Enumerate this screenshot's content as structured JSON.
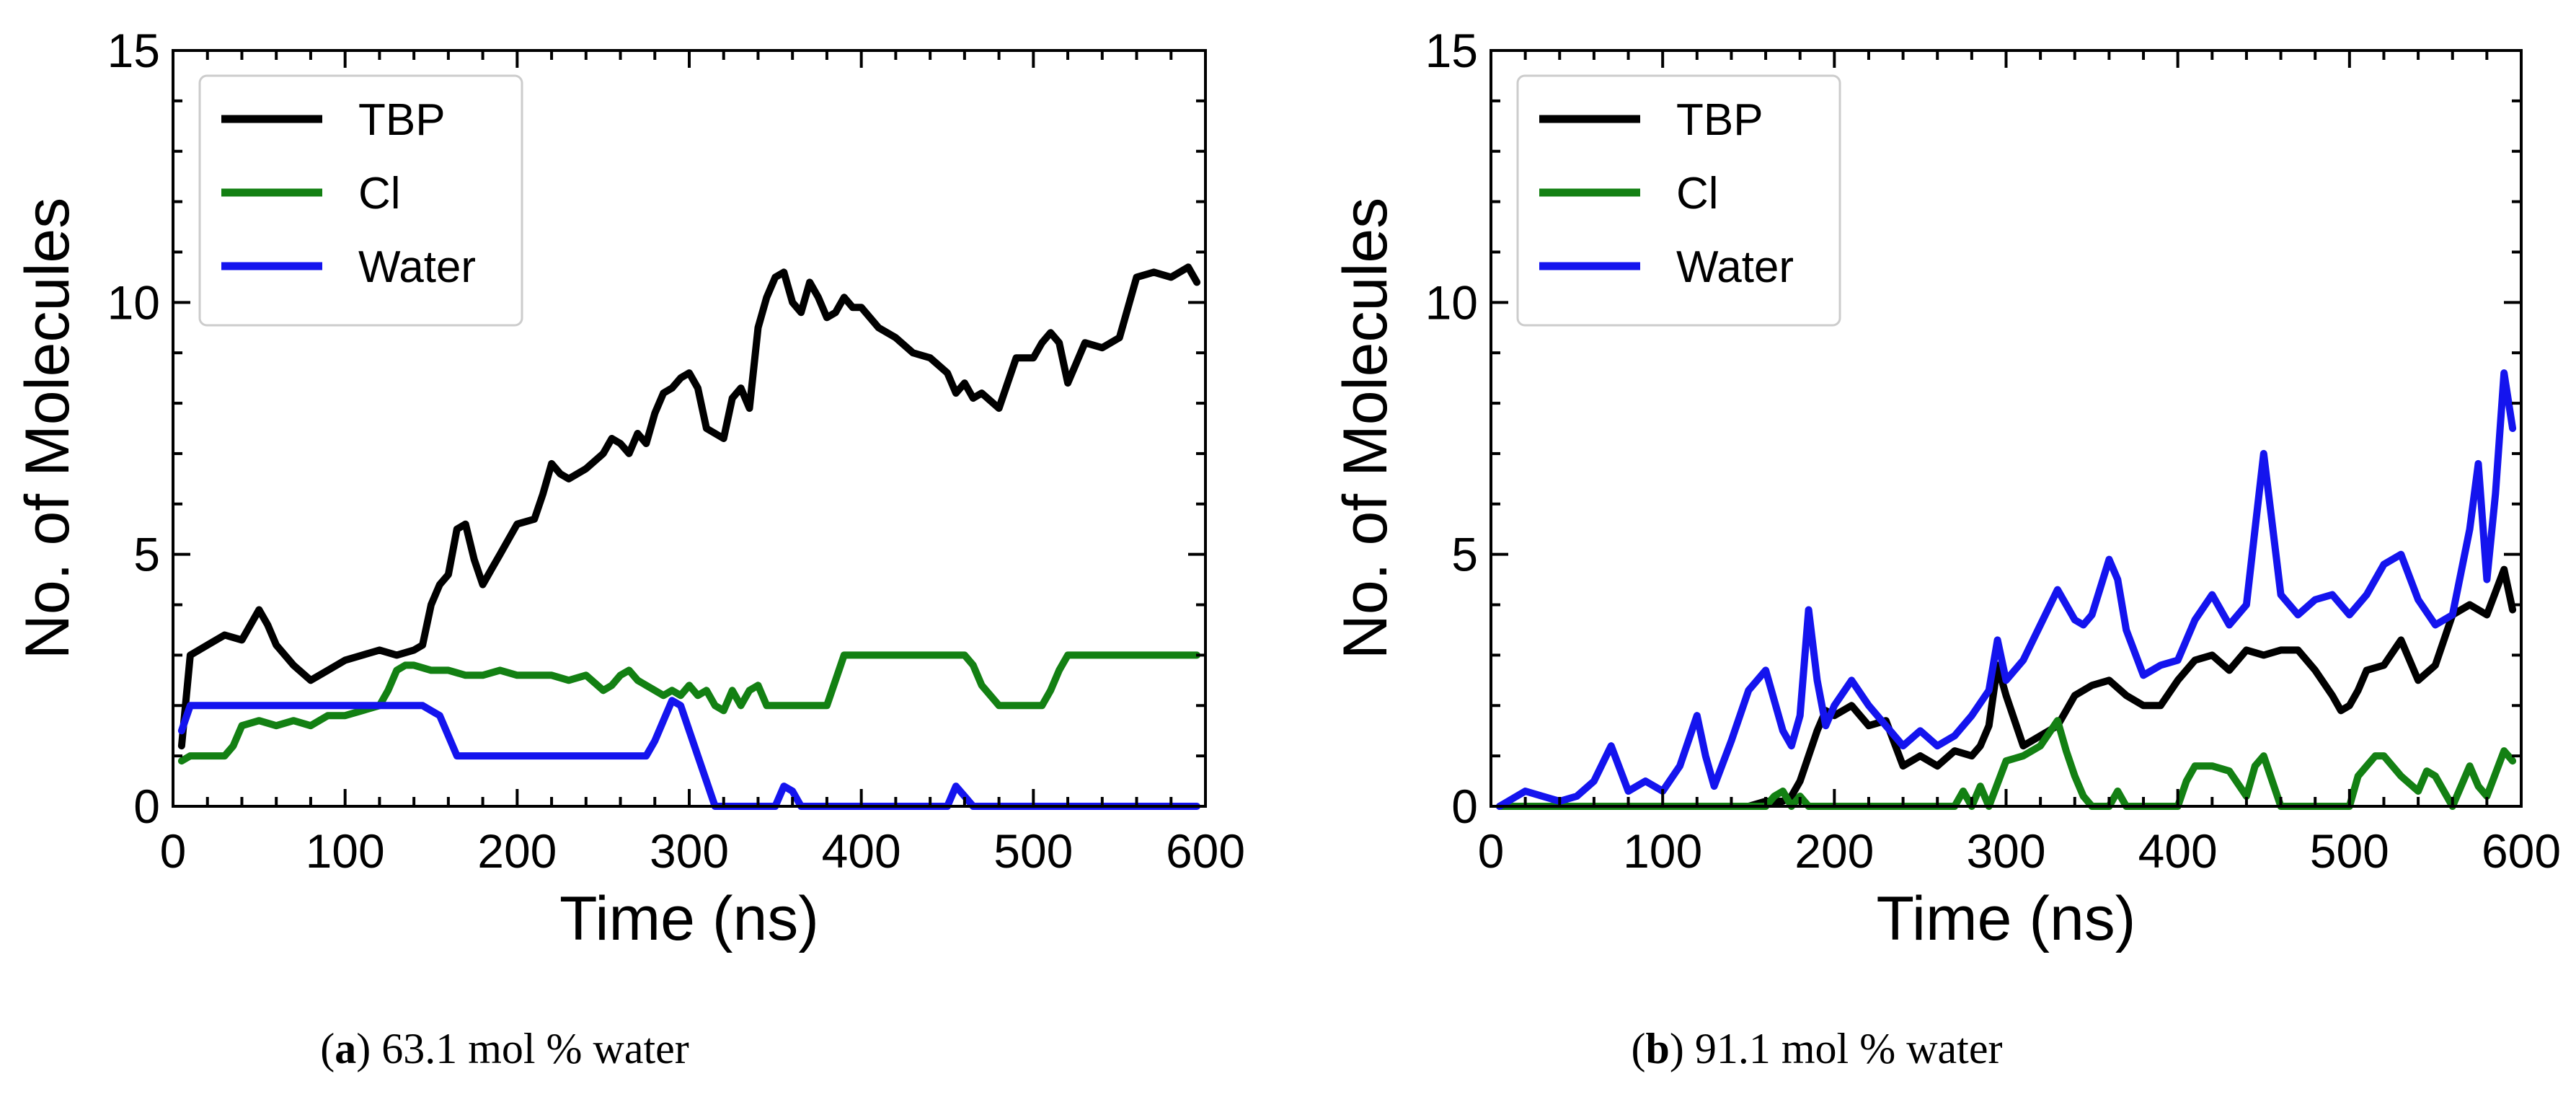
{
  "captions": [
    {
      "paren_open": "(",
      "label": "a",
      "paren_close": ")",
      "text": "63.1 mol % water"
    },
    {
      "paren_open": "(",
      "label": "b",
      "paren_close": ")",
      "text": "91.1 mol % water"
    }
  ],
  "colors": {
    "TBP": "#000000",
    "Cl": "#138013",
    "Water": "#1414ee"
  },
  "chart_data": [
    {
      "type": "line",
      "title": "",
      "xlabel": "Time (ns)",
      "ylabel": "No. of Molecules",
      "xlim": [
        0,
        600
      ],
      "ylim": [
        0,
        15
      ],
      "xticks": [
        0,
        100,
        200,
        300,
        400,
        500,
        600
      ],
      "yticks": [
        0,
        5,
        10,
        15
      ],
      "legend": "top-left",
      "series": [
        {
          "name": "TBP",
          "color": "#000000",
          "x": [
            5,
            10,
            20,
            30,
            40,
            50,
            55,
            60,
            70,
            80,
            90,
            100,
            110,
            120,
            130,
            140,
            145,
            150,
            155,
            160,
            165,
            170,
            175,
            180,
            185,
            190,
            200,
            210,
            215,
            220,
            225,
            230,
            240,
            250,
            255,
            260,
            265,
            270,
            275,
            280,
            285,
            290,
            295,
            300,
            305,
            310,
            315,
            320,
            325,
            330,
            335,
            340,
            345,
            350,
            355,
            360,
            365,
            370,
            375,
            380,
            385,
            390,
            395,
            400,
            410,
            420,
            430,
            440,
            450,
            455,
            460,
            465,
            470,
            480,
            490,
            500,
            505,
            510,
            515,
            520,
            525,
            530,
            540,
            550,
            560,
            570,
            580,
            590,
            595
          ],
          "y": [
            1.2,
            3.0,
            3.2,
            3.4,
            3.3,
            3.9,
            3.6,
            3.2,
            2.8,
            2.5,
            2.7,
            2.9,
            3.0,
            3.1,
            3.0,
            3.1,
            3.2,
            4.0,
            4.4,
            4.6,
            5.5,
            5.6,
            4.9,
            4.4,
            4.7,
            5.0,
            5.6,
            5.7,
            6.2,
            6.8,
            6.6,
            6.5,
            6.7,
            7.0,
            7.3,
            7.2,
            7.0,
            7.4,
            7.2,
            7.8,
            8.2,
            8.3,
            8.5,
            8.6,
            8.3,
            7.5,
            7.4,
            7.3,
            8.1,
            8.3,
            7.9,
            9.5,
            10.1,
            10.5,
            10.6,
            10.0,
            9.8,
            10.4,
            10.1,
            9.7,
            9.8,
            10.1,
            9.9,
            9.9,
            9.5,
            9.3,
            9.0,
            8.9,
            8.6,
            8.2,
            8.4,
            8.1,
            8.2,
            7.9,
            8.9,
            8.9,
            9.2,
            9.4,
            9.2,
            8.4,
            8.8,
            9.2,
            9.1,
            9.3,
            10.5,
            10.6,
            10.5,
            10.7,
            10.4
          ]
        },
        {
          "name": "Cl",
          "color": "#138013",
          "x": [
            5,
            10,
            20,
            30,
            35,
            40,
            50,
            60,
            70,
            80,
            90,
            100,
            110,
            120,
            125,
            130,
            135,
            140,
            150,
            160,
            170,
            180,
            190,
            200,
            210,
            220,
            230,
            240,
            250,
            255,
            260,
            265,
            270,
            275,
            280,
            285,
            290,
            295,
            300,
            305,
            310,
            315,
            320,
            325,
            330,
            335,
            340,
            345,
            350,
            360,
            370,
            380,
            385,
            390,
            395,
            400,
            410,
            420,
            430,
            440,
            450,
            460,
            465,
            470,
            480,
            490,
            500,
            505,
            510,
            515,
            520,
            530,
            540,
            550,
            560,
            570,
            580,
            590,
            595
          ],
          "y": [
            0.9,
            1.0,
            1.0,
            1.0,
            1.2,
            1.6,
            1.7,
            1.6,
            1.7,
            1.6,
            1.8,
            1.8,
            1.9,
            2.0,
            2.3,
            2.7,
            2.8,
            2.8,
            2.7,
            2.7,
            2.6,
            2.6,
            2.7,
            2.6,
            2.6,
            2.6,
            2.5,
            2.6,
            2.3,
            2.4,
            2.6,
            2.7,
            2.5,
            2.4,
            2.3,
            2.2,
            2.3,
            2.2,
            2.4,
            2.2,
            2.3,
            2.0,
            1.9,
            2.3,
            2.0,
            2.3,
            2.4,
            2.0,
            2.0,
            2.0,
            2.0,
            2.0,
            2.5,
            3.0,
            3.0,
            3.0,
            3.0,
            3.0,
            3.0,
            3.0,
            3.0,
            3.0,
            2.8,
            2.4,
            2.0,
            2.0,
            2.0,
            2.0,
            2.3,
            2.7,
            3.0,
            3.0,
            3.0,
            3.0,
            3.0,
            3.0,
            3.0,
            3.0,
            3.0
          ]
        },
        {
          "name": "Water",
          "color": "#1414ee",
          "x": [
            5,
            10,
            20,
            40,
            60,
            80,
            100,
            120,
            140,
            145,
            150,
            155,
            160,
            165,
            170,
            200,
            230,
            260,
            275,
            280,
            285,
            290,
            295,
            300,
            305,
            310,
            315,
            320,
            325,
            330,
            340,
            350,
            355,
            360,
            365,
            370,
            380,
            450,
            455,
            460,
            465,
            470,
            480,
            500,
            520,
            540,
            560,
            580,
            595
          ],
          "y": [
            1.5,
            2.0,
            2.0,
            2.0,
            2.0,
            2.0,
            2.0,
            2.0,
            2.0,
            2.0,
            1.9,
            1.8,
            1.4,
            1.0,
            1.0,
            1.0,
            1.0,
            1.0,
            1.0,
            1.3,
            1.7,
            2.1,
            2.0,
            1.5,
            1.0,
            0.5,
            0.0,
            0.0,
            0.0,
            0.0,
            0.0,
            0.0,
            0.4,
            0.3,
            0.0,
            0.0,
            0.0,
            0.0,
            0.4,
            0.2,
            0.0,
            0.0,
            0.0,
            0.0,
            0.0,
            0.0,
            0.0,
            0.0,
            0.0
          ]
        }
      ]
    },
    {
      "type": "line",
      "title": "",
      "xlabel": "Time (ns)",
      "ylabel": "No. of Molecules",
      "xlim": [
        0,
        600
      ],
      "ylim": [
        0,
        15
      ],
      "xticks": [
        0,
        100,
        200,
        300,
        400,
        500,
        600
      ],
      "yticks": [
        0,
        5,
        10,
        15
      ],
      "legend": "top-left",
      "series": [
        {
          "name": "TBP",
          "color": "#000000",
          "x": [
            5,
            50,
            100,
            150,
            160,
            170,
            175,
            180,
            185,
            190,
            195,
            200,
            210,
            220,
            230,
            240,
            250,
            260,
            270,
            280,
            285,
            290,
            295,
            300,
            305,
            310,
            320,
            330,
            340,
            350,
            360,
            370,
            380,
            390,
            400,
            410,
            420,
            430,
            440,
            450,
            460,
            470,
            480,
            490,
            495,
            500,
            505,
            510,
            520,
            530,
            540,
            550,
            560,
            570,
            580,
            590,
            595
          ],
          "y": [
            0.0,
            0.0,
            0.0,
            0.0,
            0.1,
            0.1,
            0.2,
            0.5,
            1.0,
            1.5,
            1.9,
            1.8,
            2.0,
            1.6,
            1.7,
            0.8,
            1.0,
            0.8,
            1.1,
            1.0,
            1.2,
            1.6,
            2.8,
            2.2,
            1.7,
            1.2,
            1.4,
            1.6,
            2.2,
            2.4,
            2.5,
            2.2,
            2.0,
            2.0,
            2.5,
            2.9,
            3.0,
            2.7,
            3.1,
            3.0,
            3.1,
            3.1,
            2.7,
            2.2,
            1.9,
            2.0,
            2.3,
            2.7,
            2.8,
            3.3,
            2.5,
            2.8,
            3.8,
            4.0,
            3.8,
            4.7,
            3.9
          ]
        },
        {
          "name": "Cl",
          "color": "#138013",
          "x": [
            5,
            100,
            160,
            165,
            170,
            175,
            180,
            185,
            190,
            200,
            260,
            270,
            275,
            280,
            285,
            290,
            300,
            310,
            320,
            330,
            335,
            340,
            345,
            350,
            360,
            365,
            370,
            380,
            400,
            405,
            410,
            420,
            430,
            440,
            445,
            450,
            455,
            460,
            470,
            480,
            500,
            505,
            510,
            515,
            520,
            525,
            530,
            540,
            545,
            550,
            560,
            570,
            575,
            580,
            590,
            595
          ],
          "y": [
            0.0,
            0.0,
            0.0,
            0.2,
            0.3,
            0.0,
            0.2,
            0.0,
            0.0,
            0.0,
            0.0,
            0.0,
            0.3,
            0.0,
            0.4,
            0.0,
            0.9,
            1.0,
            1.2,
            1.7,
            1.1,
            0.6,
            0.2,
            0.0,
            0.0,
            0.3,
            0.0,
            0.0,
            0.0,
            0.5,
            0.8,
            0.8,
            0.7,
            0.2,
            0.8,
            1.0,
            0.5,
            0.0,
            0.0,
            0.0,
            0.0,
            0.6,
            0.8,
            1.0,
            1.0,
            0.8,
            0.6,
            0.3,
            0.7,
            0.6,
            0.0,
            0.8,
            0.4,
            0.2,
            1.1,
            0.9
          ]
        },
        {
          "name": "Water",
          "color": "#1414ee",
          "x": [
            5,
            10,
            20,
            30,
            40,
            50,
            60,
            70,
            80,
            90,
            100,
            110,
            120,
            125,
            130,
            140,
            150,
            160,
            170,
            175,
            180,
            185,
            190,
            195,
            200,
            210,
            220,
            230,
            240,
            250,
            260,
            270,
            280,
            290,
            295,
            300,
            310,
            320,
            330,
            340,
            345,
            350,
            360,
            365,
            370,
            380,
            390,
            400,
            410,
            420,
            430,
            440,
            445,
            450,
            455,
            460,
            470,
            480,
            490,
            500,
            510,
            520,
            530,
            540,
            550,
            560,
            570,
            575,
            580,
            585,
            590,
            595
          ],
          "y": [
            0.0,
            0.1,
            0.3,
            0.2,
            0.1,
            0.2,
            0.5,
            1.2,
            0.3,
            0.5,
            0.3,
            0.8,
            1.8,
            1.0,
            0.4,
            1.3,
            2.3,
            2.7,
            1.5,
            1.2,
            1.8,
            3.9,
            2.5,
            1.6,
            2.0,
            2.5,
            2.0,
            1.6,
            1.2,
            1.5,
            1.2,
            1.4,
            1.8,
            2.3,
            3.3,
            2.5,
            2.9,
            3.6,
            4.3,
            3.7,
            3.6,
            3.8,
            4.9,
            4.5,
            3.5,
            2.6,
            2.8,
            2.9,
            3.7,
            4.2,
            3.6,
            4.0,
            5.5,
            7.0,
            5.6,
            4.2,
            3.8,
            4.1,
            4.2,
            3.8,
            4.2,
            4.8,
            5.0,
            4.1,
            3.6,
            3.8,
            5.5,
            6.8,
            4.5,
            6.2,
            8.6,
            7.5
          ]
        }
      ]
    }
  ]
}
